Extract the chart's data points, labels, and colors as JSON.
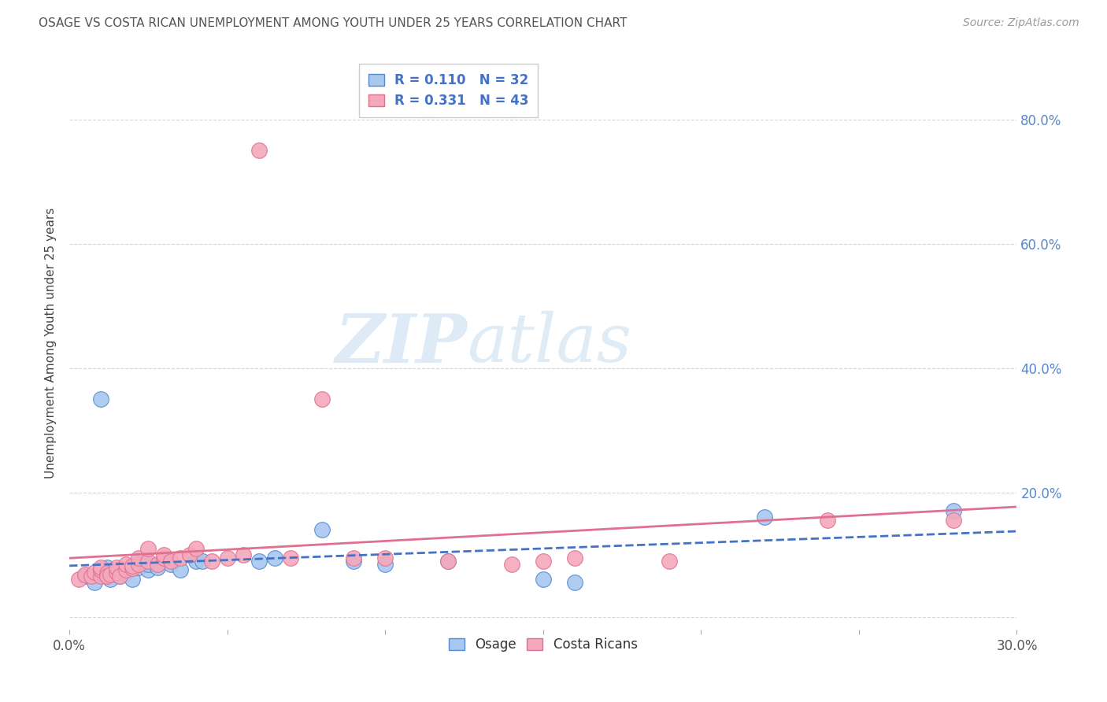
{
  "title": "OSAGE VS COSTA RICAN UNEMPLOYMENT AMONG YOUTH UNDER 25 YEARS CORRELATION CHART",
  "source": "Source: ZipAtlas.com",
  "ylabel": "Unemployment Among Youth under 25 years",
  "xlim": [
    0.0,
    0.3
  ],
  "ylim": [
    -0.02,
    0.9
  ],
  "xtick_positions": [
    0.0,
    0.05,
    0.1,
    0.15,
    0.2,
    0.25,
    0.3
  ],
  "xtick_labels_show": {
    "0.0": "0.0%",
    "0.30": "30.0%"
  },
  "ytick_positions": [
    0.0,
    0.2,
    0.4,
    0.6,
    0.8
  ],
  "right_ytick_labels": [
    "20.0%",
    "40.0%",
    "60.0%",
    "80.0%"
  ],
  "right_ytick_positions": [
    0.2,
    0.4,
    0.6,
    0.8
  ],
  "osage_color": "#A8C8F0",
  "costarican_color": "#F4A8BC",
  "osage_edge_color": "#5588CC",
  "costarican_edge_color": "#E07090",
  "osage_line_color": "#4472C4",
  "costarican_line_color": "#E07090",
  "R_osage": 0.11,
  "N_osage": 32,
  "R_costarican": 0.331,
  "N_costarican": 43,
  "background_color": "#FFFFFF",
  "grid_color": "#CCCCCC",
  "watermark_zip": "ZIP",
  "watermark_atlas": "atlas",
  "osage_x": [
    0.005,
    0.008,
    0.01,
    0.01,
    0.012,
    0.013,
    0.015,
    0.015,
    0.016,
    0.018,
    0.01,
    0.015,
    0.02,
    0.022,
    0.025,
    0.025,
    0.028,
    0.03,
    0.032,
    0.035,
    0.04,
    0.042,
    0.06,
    0.065,
    0.08,
    0.09,
    0.1,
    0.12,
    0.15,
    0.16,
    0.22,
    0.28
  ],
  "osage_y": [
    0.065,
    0.055,
    0.07,
    0.075,
    0.08,
    0.06,
    0.068,
    0.072,
    0.065,
    0.07,
    0.35,
    0.075,
    0.06,
    0.08,
    0.075,
    0.085,
    0.08,
    0.095,
    0.085,
    0.075,
    0.09,
    0.09,
    0.09,
    0.095,
    0.14,
    0.09,
    0.085,
    0.09,
    0.06,
    0.055,
    0.16,
    0.17
  ],
  "costarican_x": [
    0.003,
    0.005,
    0.007,
    0.008,
    0.01,
    0.01,
    0.01,
    0.012,
    0.012,
    0.013,
    0.015,
    0.015,
    0.016,
    0.018,
    0.018,
    0.02,
    0.02,
    0.022,
    0.022,
    0.025,
    0.025,
    0.028,
    0.03,
    0.03,
    0.032,
    0.035,
    0.038,
    0.04,
    0.045,
    0.05,
    0.055,
    0.06,
    0.07,
    0.08,
    0.09,
    0.1,
    0.12,
    0.14,
    0.15,
    0.16,
    0.19,
    0.24,
    0.28
  ],
  "costarican_y": [
    0.06,
    0.068,
    0.065,
    0.072,
    0.065,
    0.075,
    0.08,
    0.07,
    0.065,
    0.068,
    0.072,
    0.08,
    0.065,
    0.075,
    0.085,
    0.078,
    0.082,
    0.085,
    0.095,
    0.09,
    0.11,
    0.085,
    0.095,
    0.1,
    0.09,
    0.095,
    0.1,
    0.11,
    0.09,
    0.095,
    0.1,
    0.75,
    0.095,
    0.35,
    0.095,
    0.095,
    0.09,
    0.085,
    0.09,
    0.095,
    0.09,
    0.155,
    0.155
  ]
}
